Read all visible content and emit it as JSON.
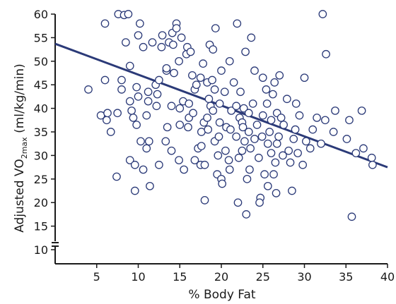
{
  "chart_data": {
    "type": "scatter",
    "title": "",
    "xlabel": "% Body Fat",
    "ylabel": {
      "prefix": "Adjusted VO",
      "subscript": "2max",
      "suffix": " (ml/kg/min)"
    },
    "xlim": [
      0,
      40
    ],
    "ylim": [
      10,
      60
    ],
    "y_axis_break": true,
    "xticks": [
      5,
      10,
      15,
      20,
      25,
      30,
      35,
      40
    ],
    "yticks": [
      10,
      15,
      20,
      25,
      30,
      35,
      40,
      45,
      50,
      55,
      60
    ],
    "grid": false,
    "legend": "none",
    "colors": {
      "marker_edge": "#2b3a78",
      "marker_face": "#ffffff",
      "trend_line": "#2b3a78",
      "axis": "#1a1a1a"
    },
    "trend_line": {
      "x": [
        0,
        40
      ],
      "y": [
        53.7,
        27.5
      ]
    },
    "points": [
      [
        4.0,
        44.0
      ],
      [
        5.5,
        38.5
      ],
      [
        6.0,
        46.0
      ],
      [
        6.0,
        58.0
      ],
      [
        6.2,
        37.5
      ],
      [
        6.3,
        39.0
      ],
      [
        6.7,
        35.0
      ],
      [
        7.4,
        25.5
      ],
      [
        7.5,
        39.0
      ],
      [
        7.6,
        60.0
      ],
      [
        8.0,
        44.0
      ],
      [
        8.0,
        46.0
      ],
      [
        8.3,
        59.8
      ],
      [
        8.5,
        54.0
      ],
      [
        8.8,
        60.0
      ],
      [
        9.0,
        29.0
      ],
      [
        9.0,
        41.5
      ],
      [
        9.0,
        49.0
      ],
      [
        9.2,
        39.5
      ],
      [
        9.4,
        38.0
      ],
      [
        9.6,
        28.0
      ],
      [
        9.6,
        22.5
      ],
      [
        9.8,
        36.5
      ],
      [
        9.8,
        44.5
      ],
      [
        10.0,
        55.5
      ],
      [
        10.0,
        42.5
      ],
      [
        10.2,
        58.0
      ],
      [
        10.3,
        33.0
      ],
      [
        10.6,
        27.0
      ],
      [
        10.6,
        53.0
      ],
      [
        11.0,
        38.5
      ],
      [
        11.0,
        31.5
      ],
      [
        11.2,
        43.5
      ],
      [
        11.2,
        41.5
      ],
      [
        11.3,
        33.0
      ],
      [
        11.4,
        23.5
      ],
      [
        11.7,
        54.0
      ],
      [
        12.1,
        45.0
      ],
      [
        12.2,
        40.5
      ],
      [
        12.3,
        43.0
      ],
      [
        12.5,
        28.0
      ],
      [
        12.5,
        46.0
      ],
      [
        12.8,
        53.0
      ],
      [
        12.9,
        55.5
      ],
      [
        13.3,
        33.0
      ],
      [
        13.4,
        48.0
      ],
      [
        13.4,
        48.5
      ],
      [
        13.5,
        36.0
      ],
      [
        13.7,
        54.0
      ],
      [
        14.0,
        31.0
      ],
      [
        14.0,
        40.5
      ],
      [
        14.1,
        56.0
      ],
      [
        14.2,
        53.5
      ],
      [
        14.3,
        47.5
      ],
      [
        14.6,
        58.0
      ],
      [
        14.6,
        57.0
      ],
      [
        14.9,
        29.0
      ],
      [
        14.9,
        50.0
      ],
      [
        15.0,
        36.5
      ],
      [
        15.0,
        40.0
      ],
      [
        15.2,
        55.0
      ],
      [
        15.4,
        41.5
      ],
      [
        15.8,
        51.5
      ],
      [
        15.9,
        53.0
      ],
      [
        16.0,
        36.0
      ],
      [
        16.1,
        38.0
      ],
      [
        16.1,
        41.0
      ],
      [
        16.3,
        52.0
      ],
      [
        16.5,
        47.0
      ],
      [
        16.6,
        39.0
      ],
      [
        16.8,
        44.0
      ],
      [
        16.8,
        29.0
      ],
      [
        17.0,
        45.0
      ],
      [
        17.2,
        31.5
      ],
      [
        17.5,
        46.5
      ],
      [
        17.5,
        28.0
      ],
      [
        17.6,
        32.0
      ],
      [
        17.6,
        35.0
      ],
      [
        17.8,
        49.5
      ],
      [
        17.9,
        37.0
      ],
      [
        18.0,
        28.0
      ],
      [
        18.3,
        38.0
      ],
      [
        18.3,
        45.5
      ],
      [
        18.4,
        35.5
      ],
      [
        18.5,
        42.0
      ],
      [
        18.6,
        53.5
      ],
      [
        18.7,
        40.5
      ],
      [
        18.9,
        46.0
      ],
      [
        19.0,
        52.5
      ],
      [
        19.0,
        39.5
      ],
      [
        19.2,
        44.0
      ],
      [
        19.2,
        33.0
      ],
      [
        19.3,
        57.0
      ],
      [
        19.5,
        26.0
      ],
      [
        19.6,
        30.0
      ],
      [
        19.7,
        34.0
      ],
      [
        19.8,
        37.0
      ],
      [
        19.8,
        41.0
      ],
      [
        20.0,
        48.0
      ],
      [
        20.0,
        25.0
      ],
      [
        20.1,
        24.0
      ],
      [
        20.4,
        43.5
      ],
      [
        20.5,
        31.0
      ],
      [
        20.6,
        36.0
      ],
      [
        20.9,
        29.0
      ],
      [
        21.0,
        50.0
      ],
      [
        21.1,
        35.5
      ],
      [
        21.2,
        39.5
      ],
      [
        21.5,
        45.5
      ],
      [
        21.8,
        40.5
      ],
      [
        21.8,
        34.0
      ],
      [
        21.9,
        58.0
      ],
      [
        22.0,
        20.0
      ],
      [
        22.1,
        29.5
      ],
      [
        22.2,
        38.0
      ],
      [
        22.3,
        43.5
      ],
      [
        22.5,
        37.0
      ],
      [
        22.5,
        31.0
      ],
      [
        22.6,
        36.0
      ],
      [
        22.7,
        40.0
      ],
      [
        22.8,
        33.0
      ],
      [
        22.9,
        52.0
      ],
      [
        23.0,
        17.5
      ],
      [
        23.1,
        25.0
      ],
      [
        23.3,
        39.0
      ],
      [
        23.3,
        35.0
      ],
      [
        23.4,
        27.0
      ],
      [
        23.5,
        31.5
      ],
      [
        23.6,
        55.0
      ],
      [
        23.8,
        41.0
      ],
      [
        24.0,
        33.5
      ],
      [
        24.3,
        36.5
      ],
      [
        24.5,
        29.5
      ],
      [
        24.7,
        21.0
      ],
      [
        24.9,
        34.0
      ],
      [
        25.0,
        38.5
      ],
      [
        25.0,
        46.5
      ],
      [
        25.2,
        26.0
      ],
      [
        25.4,
        44.0
      ],
      [
        25.5,
        41.0
      ],
      [
        25.6,
        32.5
      ],
      [
        25.6,
        23.5
      ],
      [
        25.8,
        35.0
      ],
      [
        26.0,
        30.5
      ],
      [
        26.0,
        37.5
      ],
      [
        26.2,
        43.0
      ],
      [
        26.4,
        45.5
      ],
      [
        26.5,
        28.5
      ],
      [
        26.6,
        22.0
      ],
      [
        26.7,
        39.0
      ],
      [
        26.7,
        32.5
      ],
      [
        26.9,
        34.0
      ],
      [
        27.0,
        47.0
      ],
      [
        27.2,
        38.0
      ],
      [
        27.5,
        36.5
      ],
      [
        27.9,
        42.0
      ],
      [
        28.1,
        31.0
      ],
      [
        28.3,
        28.5
      ],
      [
        28.5,
        22.5
      ],
      [
        28.7,
        33.5
      ],
      [
        28.9,
        35.5
      ],
      [
        29.0,
        41.0
      ],
      [
        29.2,
        30.5
      ],
      [
        29.4,
        38.5
      ],
      [
        30.0,
        46.5
      ],
      [
        30.2,
        33.0
      ],
      [
        30.7,
        31.5
      ],
      [
        31.0,
        35.5
      ],
      [
        31.5,
        38.0
      ],
      [
        32.0,
        32.5
      ],
      [
        32.2,
        60.0
      ],
      [
        32.5,
        37.5
      ],
      [
        32.6,
        51.5
      ],
      [
        33.5,
        35.0
      ],
      [
        33.7,
        39.5
      ],
      [
        35.1,
        33.5
      ],
      [
        35.4,
        37.5
      ],
      [
        35.7,
        17.0
      ],
      [
        36.2,
        30.5
      ],
      [
        36.9,
        39.5
      ],
      [
        37.1,
        31.5
      ],
      [
        38.1,
        29.5
      ],
      [
        38.2,
        28.0
      ],
      [
        21.0,
        27.0
      ],
      [
        18.0,
        20.5
      ],
      [
        24.6,
        20.0
      ],
      [
        27.4,
        30.0
      ],
      [
        15.5,
        27.0
      ],
      [
        24.0,
        48.0
      ],
      [
        26.3,
        26.0
      ],
      [
        29.8,
        28.0
      ]
    ]
  }
}
